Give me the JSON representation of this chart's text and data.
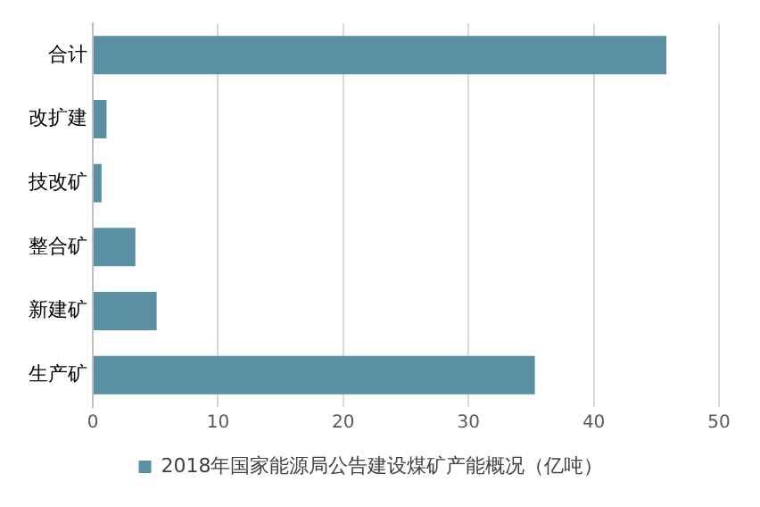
{
  "chart_data": {
    "type": "bar",
    "orientation": "horizontal",
    "categories": [
      "合计",
      "改扩建",
      "技改矿",
      "整合矿",
      "新建矿",
      "生产矿"
    ],
    "series": [
      {
        "name": "2018年国家能源局公告建设煤矿产能概况（亿吨）",
        "color": "#5b8fa3",
        "values": [
          45.8,
          1.1,
          0.7,
          3.4,
          5.1,
          35.3
        ]
      }
    ],
    "xlim": [
      0,
      50
    ],
    "xticks": [
      0,
      10,
      20,
      30,
      40,
      50
    ],
    "grid": "x",
    "legend": "bottom"
  }
}
